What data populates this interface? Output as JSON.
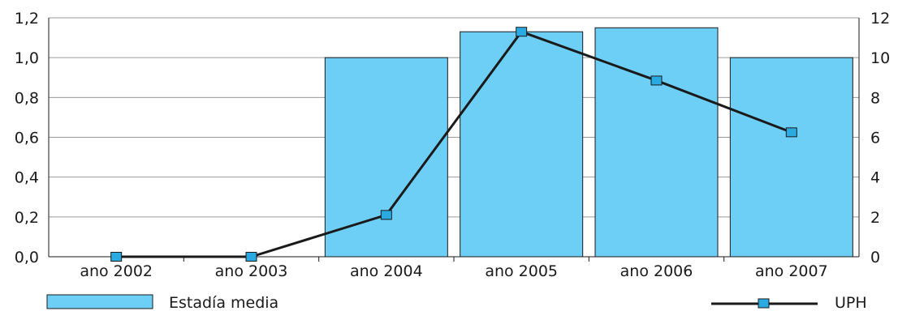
{
  "chart_data": {
    "type": "bar",
    "categories": [
      "ano 2002",
      "ano 2003",
      "ano 2004",
      "ano 2005",
      "ano 2006",
      "ano 2007"
    ],
    "series": [
      {
        "name": "Estadía media",
        "type": "bar",
        "axis": "left",
        "values": [
          0,
          0,
          1.0,
          1.13,
          1.15,
          1.0
        ]
      },
      {
        "name": "UPH",
        "type": "line",
        "axis": "right",
        "values": [
          0,
          0,
          2.1,
          11.3,
          8.85,
          6.25
        ]
      }
    ],
    "y_left": {
      "ylim": [
        0,
        1.2
      ],
      "ticks": [
        "0,0",
        "0,2",
        "0,4",
        "0,6",
        "0,8",
        "1,0",
        "1,2"
      ]
    },
    "y_right": {
      "ylim": [
        0,
        12
      ],
      "ticks": [
        "0",
        "2",
        "4",
        "6",
        "8",
        "10",
        "12"
      ]
    },
    "grid": "horizontal",
    "legend": {
      "position": "bottom",
      "bar_label": "Estadía media",
      "line_label": "UPH"
    },
    "colors": {
      "bar": "#6dcff6",
      "bar_edge": "#1a1a1a",
      "line": "#1a1a1a",
      "marker": "#29abe2",
      "grid": "#9a9a9a"
    }
  }
}
